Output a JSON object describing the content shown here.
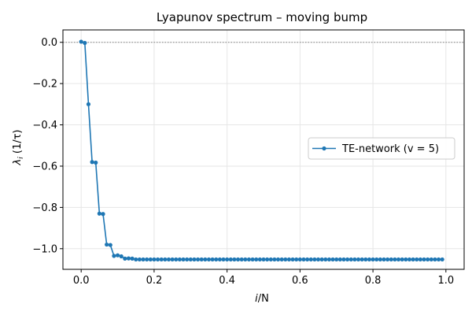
{
  "chart_data": {
    "type": "line",
    "title": "Lyapunov spectrum – moving bump",
    "xlabel_main": "i",
    "xlabel_rest": "/N",
    "ylabel_main": "λ",
    "ylabel_sub": "i",
    "ylabel_rest": " (1/τ)",
    "xlim": [
      -0.05,
      1.05
    ],
    "ylim": [
      -1.1,
      0.06
    ],
    "xticks": [
      0.0,
      0.2,
      0.4,
      0.6,
      0.8,
      1.0
    ],
    "xtick_labels": [
      "0.0",
      "0.2",
      "0.4",
      "0.6",
      "0.8",
      "1.0"
    ],
    "yticks": [
      0.0,
      -0.2,
      -0.4,
      -0.6,
      -0.8,
      -1.0
    ],
    "ytick_labels": [
      "0.0",
      "−0.2",
      "−0.4",
      "−0.6",
      "−0.8",
      "−1.0"
    ],
    "grid": true,
    "reference_line_y": 0.0,
    "legend_position": "center-right",
    "series": [
      {
        "name": "TE-network  (v = 5)",
        "color": "#1f77b4",
        "x": [
          0.0,
          0.01,
          0.02,
          0.03,
          0.04,
          0.05,
          0.06,
          0.07,
          0.08,
          0.09,
          0.1,
          0.11,
          0.12,
          0.13,
          0.14,
          0.15,
          0.16,
          0.17,
          0.18,
          0.19,
          0.2,
          0.21,
          0.22,
          0.23,
          0.24,
          0.25,
          0.26,
          0.27,
          0.28,
          0.29,
          0.3,
          0.31,
          0.32,
          0.33,
          0.34,
          0.35,
          0.36,
          0.37,
          0.38,
          0.39,
          0.4,
          0.41,
          0.42,
          0.43,
          0.44,
          0.45,
          0.46,
          0.47,
          0.48,
          0.49,
          0.5,
          0.51,
          0.52,
          0.53,
          0.54,
          0.55,
          0.56,
          0.57,
          0.58,
          0.59,
          0.6,
          0.61,
          0.62,
          0.63,
          0.64,
          0.65,
          0.66,
          0.67,
          0.68,
          0.69,
          0.7,
          0.71,
          0.72,
          0.73,
          0.74,
          0.75,
          0.76,
          0.77,
          0.78,
          0.79,
          0.8,
          0.81,
          0.82,
          0.83,
          0.84,
          0.85,
          0.86,
          0.87,
          0.88,
          0.89,
          0.9,
          0.91,
          0.92,
          0.93,
          0.94,
          0.95,
          0.96,
          0.97,
          0.98,
          0.99
        ],
        "y": [
          0.003,
          -0.003,
          -0.3,
          -0.58,
          -0.583,
          -0.83,
          -0.832,
          -0.98,
          -0.982,
          -1.035,
          -1.032,
          -1.037,
          -1.048,
          -1.047,
          -1.048,
          -1.052,
          -1.052,
          -1.052,
          -1.052,
          -1.052,
          -1.052,
          -1.052,
          -1.052,
          -1.052,
          -1.052,
          -1.052,
          -1.052,
          -1.052,
          -1.052,
          -1.052,
          -1.052,
          -1.052,
          -1.052,
          -1.052,
          -1.052,
          -1.052,
          -1.052,
          -1.052,
          -1.052,
          -1.052,
          -1.052,
          -1.052,
          -1.052,
          -1.052,
          -1.052,
          -1.052,
          -1.052,
          -1.052,
          -1.052,
          -1.052,
          -1.052,
          -1.052,
          -1.052,
          -1.052,
          -1.052,
          -1.052,
          -1.052,
          -1.052,
          -1.052,
          -1.052,
          -1.052,
          -1.052,
          -1.052,
          -1.052,
          -1.052,
          -1.052,
          -1.052,
          -1.052,
          -1.052,
          -1.052,
          -1.052,
          -1.052,
          -1.052,
          -1.052,
          -1.052,
          -1.052,
          -1.052,
          -1.052,
          -1.052,
          -1.052,
          -1.052,
          -1.052,
          -1.052,
          -1.052,
          -1.052,
          -1.052,
          -1.052,
          -1.052,
          -1.052,
          -1.052,
          -1.052,
          -1.052,
          -1.052,
          -1.052,
          -1.052,
          -1.052,
          -1.052,
          -1.052,
          -1.052,
          -1.052
        ]
      }
    ]
  }
}
